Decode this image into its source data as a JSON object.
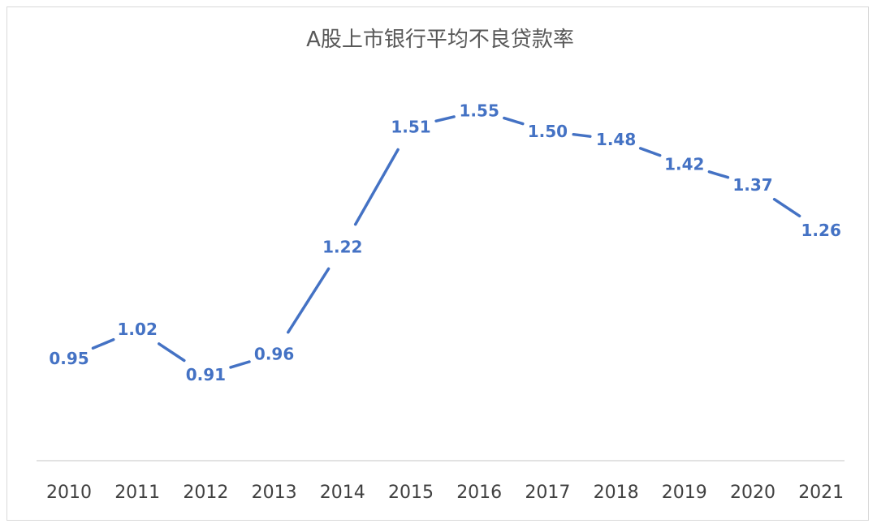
{
  "chart_data": {
    "type": "line",
    "title": "A股上市银行平均不良贷款率",
    "xlabel": "",
    "ylabel": "",
    "categories": [
      "2010",
      "2011",
      "2012",
      "2013",
      "2014",
      "2015",
      "2016",
      "2017",
      "2018",
      "2019",
      "2020",
      "2021"
    ],
    "series": [
      {
        "values": [
          0.95,
          1.02,
          0.91,
          0.96,
          1.22,
          1.51,
          1.55,
          1.5,
          1.48,
          1.42,
          1.37,
          1.26
        ],
        "labels": [
          "0.95",
          "1.02",
          "0.91",
          "0.96",
          "1.22",
          "1.51",
          "1.55",
          "1.50",
          "1.48",
          "1.42",
          "1.37",
          "1.26"
        ],
        "color": "#4472c4"
      }
    ],
    "ylim": [
      0.6,
      1.7
    ],
    "grid": false,
    "data_labels": true,
    "legend": "none"
  }
}
